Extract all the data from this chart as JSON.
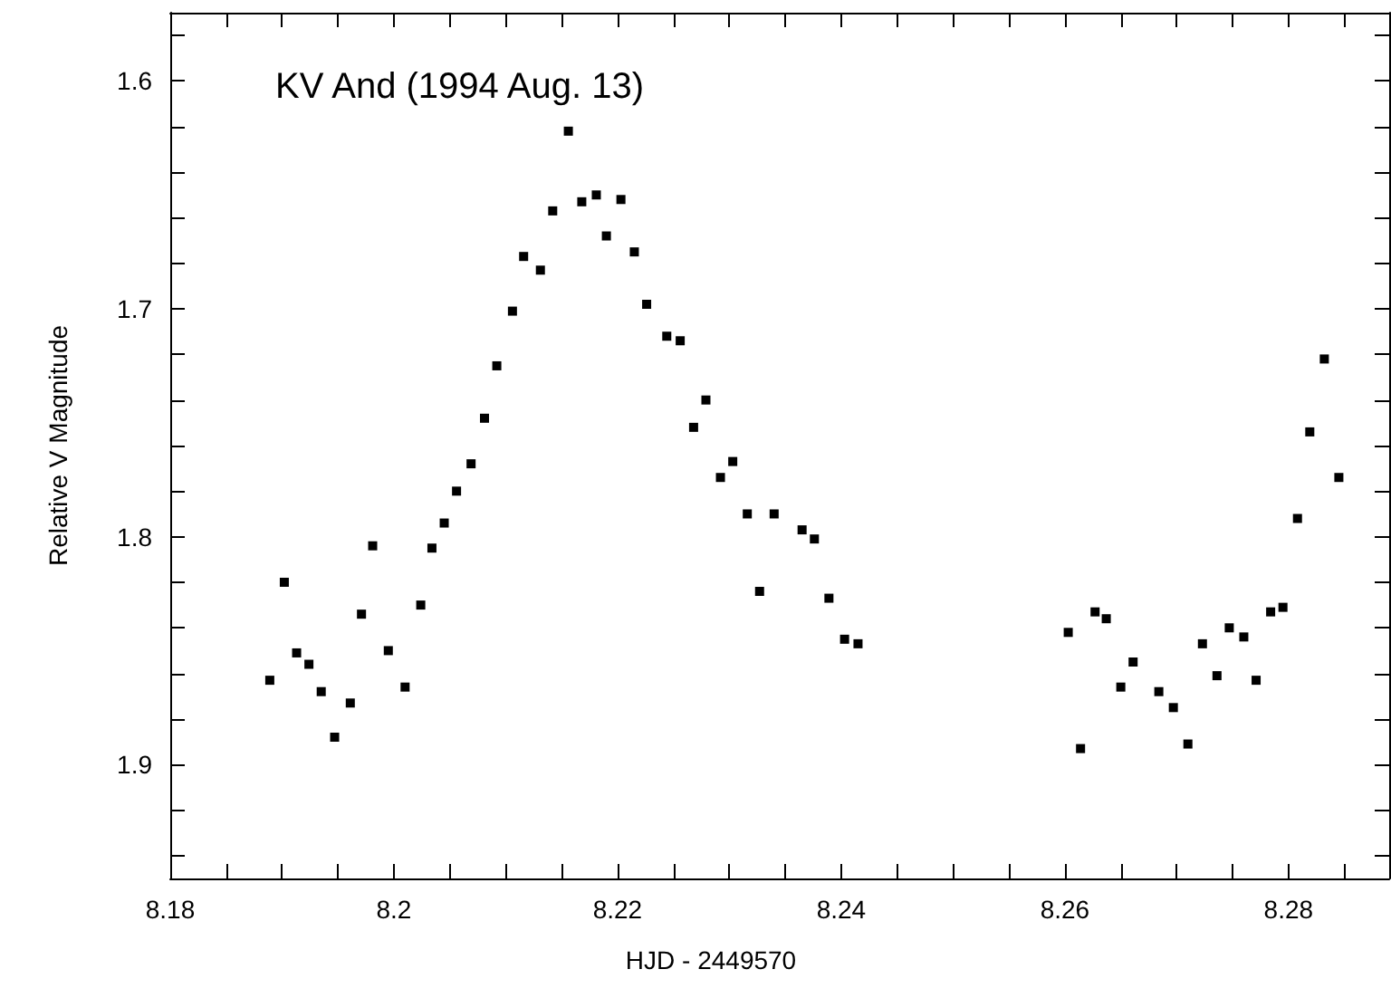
{
  "chart_data": {
    "type": "scatter",
    "title": "KV And (1994 Aug. 13)",
    "xlabel": "HJD - 2449570",
    "ylabel": "Relative V Magnitude",
    "x": [
      8.1889,
      8.1902,
      8.1913,
      8.1924,
      8.1935,
      8.1947,
      8.1961,
      8.1971,
      8.1981,
      8.1995,
      8.201,
      8.2024,
      8.2034,
      8.2045,
      8.2056,
      8.2069,
      8.2081,
      8.2092,
      8.2106,
      8.2116,
      8.2131,
      8.2142,
      8.2156,
      8.2168,
      8.2181,
      8.219,
      8.2203,
      8.2215,
      8.2226,
      8.2244,
      8.2256,
      8.2268,
      8.2279,
      8.2292,
      8.2303,
      8.2316,
      8.2327,
      8.234,
      8.2365,
      8.2376,
      8.2389,
      8.2403,
      8.2415,
      8.2603,
      8.2614,
      8.2627,
      8.2637,
      8.265,
      8.2661,
      8.2684,
      8.2697,
      8.271,
      8.2723,
      8.2736,
      8.2747,
      8.276,
      8.2771,
      8.2784,
      8.2795,
      8.2808,
      8.2819,
      8.2832,
      8.2845
    ],
    "series": [
      {
        "color": "#000000",
        "values": [
          1.863,
          1.82,
          1.851,
          1.856,
          1.868,
          1.888,
          1.873,
          1.834,
          1.804,
          1.85,
          1.866,
          1.83,
          1.805,
          1.794,
          1.78,
          1.768,
          1.748,
          1.725,
          1.701,
          1.677,
          1.683,
          1.657,
          1.622,
          1.653,
          1.65,
          1.668,
          1.652,
          1.675,
          1.698,
          1.712,
          1.714,
          1.752,
          1.74,
          1.774,
          1.767,
          1.79,
          1.824,
          1.79,
          1.797,
          1.801,
          1.827,
          1.845,
          1.847,
          1.842,
          1.893,
          1.833,
          1.836,
          1.866,
          1.855,
          1.868,
          1.875,
          1.891,
          1.847,
          1.861,
          1.84,
          1.844,
          1.863,
          1.833,
          1.831,
          1.792,
          1.754,
          1.722,
          1.774
        ]
      }
    ],
    "xlim": [
      8.18,
      8.289
    ],
    "xticks": [
      8.18,
      {
        "value": 8.185,
        "label": null
      },
      {
        "value": 8.19,
        "label": null
      },
      {
        "value": 8.195,
        "label": null
      },
      8.2,
      {
        "value": 8.205,
        "label": null
      },
      {
        "value": 8.21,
        "label": null
      },
      {
        "value": 8.215,
        "label": null
      },
      8.22,
      {
        "value": 8.225,
        "label": null
      },
      {
        "value": 8.23,
        "label": null
      },
      {
        "value": 8.235,
        "label": null
      },
      8.24,
      {
        "value": 8.245,
        "label": null
      },
      {
        "value": 8.25,
        "label": null
      },
      {
        "value": 8.255,
        "label": null
      },
      8.26,
      {
        "value": 8.265,
        "label": null
      },
      {
        "value": 8.27,
        "label": null
      },
      {
        "value": 8.275,
        "label": null
      },
      8.28,
      {
        "value": 8.285,
        "label": null
      }
    ],
    "ylim": [
      1.95,
      1.57
    ],
    "yticks": [
      {
        "value": 1.58,
        "label": null
      },
      1.6,
      {
        "value": 1.62,
        "label": null
      },
      {
        "value": 1.64,
        "label": null
      },
      {
        "value": 1.66,
        "label": null
      },
      {
        "value": 1.68,
        "label": null
      },
      1.7,
      {
        "value": 1.72,
        "label": null
      },
      {
        "value": 1.74,
        "label": null
      },
      {
        "value": 1.76,
        "label": null
      },
      {
        "value": 1.78,
        "label": null
      },
      1.8,
      {
        "value": 1.82,
        "label": null
      },
      {
        "value": 1.84,
        "label": null
      },
      {
        "value": 1.86,
        "label": null
      },
      {
        "value": 1.88,
        "label": null
      },
      1.9,
      {
        "value": 1.92,
        "label": null
      },
      {
        "value": 1.94,
        "label": null
      }
    ],
    "marker": "square",
    "grid": false
  }
}
